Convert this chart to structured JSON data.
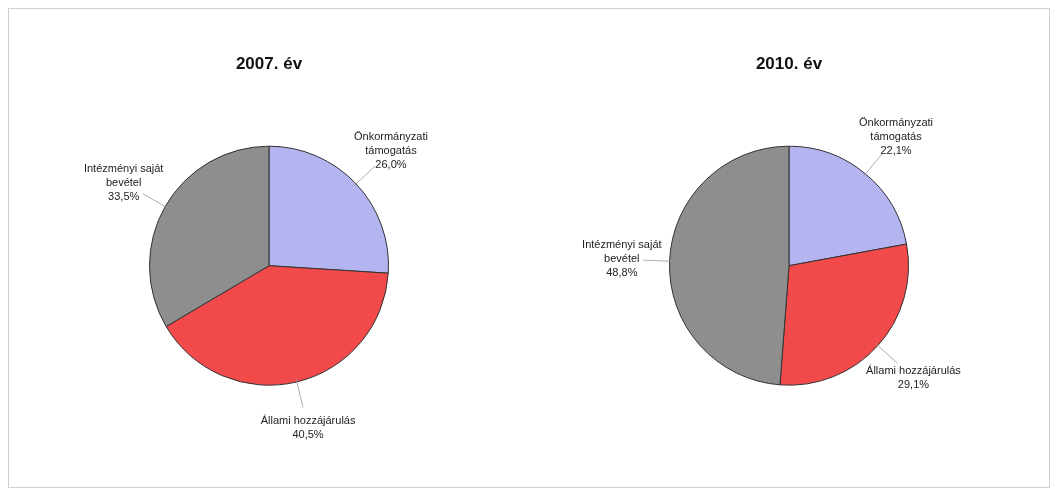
{
  "chart_data": [
    {
      "type": "pie",
      "title": "2007. év",
      "categories": [
        "Önkormányzati támogatás",
        "Állami hozzájárulás",
        "Intézményi saját bevétel"
      ],
      "values": [
        26.0,
        40.5,
        33.5
      ],
      "colors": [
        "#b4b4f0",
        "#f24a4a",
        "#8e8e8e"
      ],
      "value_labels": [
        "26,0%",
        "40,5%",
        "33,5%"
      ]
    },
    {
      "type": "pie",
      "title": "2010. év",
      "categories": [
        "Önkormányzati támogatás",
        "Állami hozzájárulás",
        "Intézményi saját bevétel"
      ],
      "values": [
        22.1,
        29.1,
        48.8
      ],
      "colors": [
        "#b4b4f0",
        "#f24a4a",
        "#8e8e8e"
      ],
      "value_labels": [
        "22,1%",
        "29,1%",
        "48,8%"
      ]
    }
  ]
}
